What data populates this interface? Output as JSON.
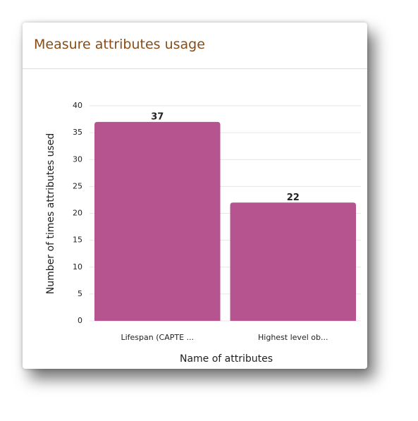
{
  "chart_data": {
    "type": "bar",
    "title": "Measure attributes usage",
    "x_label": "Name of attributes",
    "y_label": "Number of times attributes used",
    "categories": [
      "Lifespan (CAPTE ...",
      "Highest level ob..."
    ],
    "values": [
      37,
      22
    ],
    "color": "#b5548f",
    "ylim": [
      0,
      40
    ],
    "yticks": [
      0,
      5,
      10,
      15,
      20,
      25,
      30,
      35,
      40
    ],
    "grid": true
  }
}
